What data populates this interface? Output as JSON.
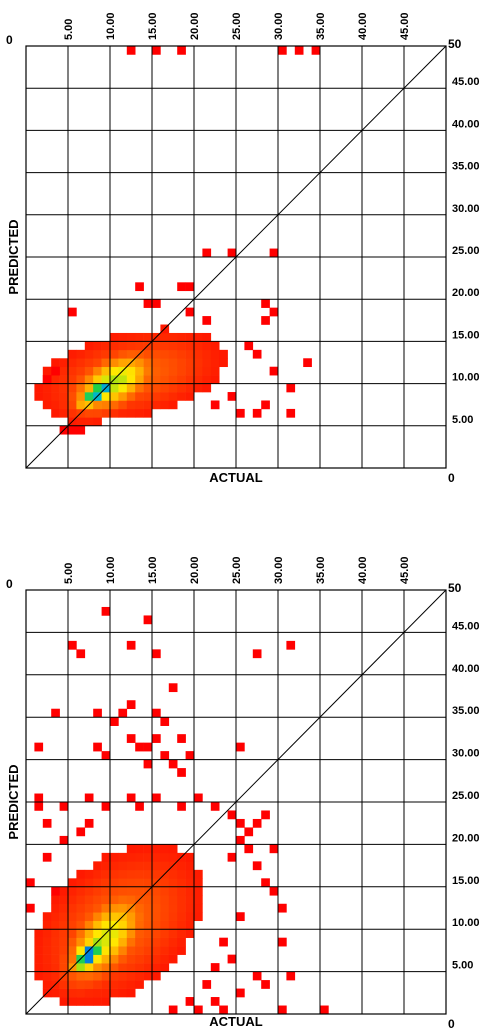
{
  "chart_data": [
    {
      "type": "heatmap",
      "title": "",
      "xlabel": "ACTUAL",
      "ylabel": "PREDICTED",
      "xlim": [
        0,
        50
      ],
      "ylim": [
        0,
        50
      ],
      "cell_size": 1,
      "grid": true,
      "diagonal_reference_line": true,
      "x_ticks": [
        "5.00",
        "10.00",
        "15.00",
        "20.00",
        "25.00",
        "30.00",
        "35.00",
        "40.00",
        "45.00"
      ],
      "y_ticks": [
        "5.00",
        "10.00",
        "15.00",
        "20.00",
        "25.00",
        "30.00",
        "35.00",
        "40.00",
        "45.00"
      ],
      "corner_labels": {
        "top_left": "0",
        "top_right": "50",
        "bottom_right": "0"
      },
      "colors": {
        "low": "#ff0000",
        "mid_low": "#ff8800",
        "mid": "#ffff00",
        "mid_high": "#22dd22",
        "high": "#0000ff"
      },
      "clusters": [
        {
          "cx": 8.7,
          "cy": 9.0,
          "sx": 1.6,
          "sy": 1.1,
          "rho": 0.72,
          "peak": 1.0
        },
        {
          "cx": 10.5,
          "cy": 10.2,
          "sx": 3.2,
          "sy": 2.3,
          "rho": 0.5,
          "peak": 0.55
        },
        {
          "cx": 12.5,
          "cy": 11.0,
          "sx": 6.5,
          "sy": 3.2,
          "rho": 0.35,
          "peak": 0.22
        }
      ],
      "density_threshold": 0.05,
      "outliers": [
        [
          12,
          50
        ],
        [
          15,
          50
        ],
        [
          18,
          50
        ],
        [
          30,
          50
        ],
        [
          32,
          50
        ],
        [
          34,
          50
        ],
        [
          21,
          25.6
        ],
        [
          24,
          25.6
        ],
        [
          29,
          25.6
        ],
        [
          13,
          21.6
        ],
        [
          18,
          21.6
        ],
        [
          19,
          21.6
        ],
        [
          5,
          18.6
        ],
        [
          14,
          19.6
        ],
        [
          15,
          19.6
        ],
        [
          28,
          19.6
        ],
        [
          29,
          18.6
        ],
        [
          28,
          17.6
        ],
        [
          19,
          18.6
        ],
        [
          21,
          17.6
        ],
        [
          26,
          14.6
        ],
        [
          33,
          12.6
        ],
        [
          31,
          9.6
        ],
        [
          31,
          6.6
        ],
        [
          24,
          8.6
        ],
        [
          22,
          7.6
        ],
        [
          25,
          6.6
        ],
        [
          27,
          6.6
        ],
        [
          28,
          7.6
        ],
        [
          6,
          4.6
        ],
        [
          4,
          4.6
        ],
        [
          5,
          4.6
        ],
        [
          29,
          11.6
        ],
        [
          27,
          13.6
        ],
        [
          2,
          10.6
        ],
        [
          3,
          11.6
        ]
      ],
      "vmax": 1.0
    },
    {
      "type": "heatmap",
      "title": "",
      "xlabel": "ACTUAL",
      "ylabel": "PREDICTED",
      "xlim": [
        0,
        50
      ],
      "ylim": [
        0,
        50
      ],
      "cell_size": 1,
      "grid": true,
      "diagonal_reference_line": true,
      "x_ticks": [
        "5.00",
        "10.00",
        "15.00",
        "20.00",
        "25.00",
        "30.00",
        "35.00",
        "40.00",
        "45.00"
      ],
      "y_ticks": [
        "5.00",
        "10.00",
        "15.00",
        "20.00",
        "25.00",
        "30.00",
        "35.00",
        "40.00",
        "45.00"
      ],
      "corner_labels": {
        "top_left": "0",
        "top_right": "50",
        "bottom_right": "0"
      },
      "colors": {
        "low": "#ff0000",
        "mid_low": "#ff8800",
        "mid": "#ffff00",
        "mid_high": "#22dd22",
        "high": "#0000ff"
      },
      "clusters": [
        {
          "cx": 7.5,
          "cy": 7.0,
          "sx": 1.3,
          "sy": 1.4,
          "rho": 0.6,
          "peak": 1.0
        },
        {
          "cx": 9.5,
          "cy": 9.0,
          "sx": 3.2,
          "sy": 3.5,
          "rho": 0.55,
          "peak": 0.5
        },
        {
          "cx": 11.0,
          "cy": 10.5,
          "sx": 6.0,
          "sy": 5.5,
          "rho": 0.4,
          "peak": 0.22
        }
      ],
      "density_threshold": 0.05,
      "outliers": [
        [
          9,
          47.6
        ],
        [
          14,
          46.6
        ],
        [
          5,
          43.6
        ],
        [
          6,
          42.6
        ],
        [
          12,
          43.6
        ],
        [
          15,
          42.6
        ],
        [
          31,
          43.6
        ],
        [
          27,
          42.6
        ],
        [
          17,
          38.6
        ],
        [
          12,
          36.6
        ],
        [
          3,
          35.6
        ],
        [
          8,
          35.6
        ],
        [
          11,
          35.6
        ],
        [
          15,
          35.6
        ],
        [
          16,
          34.6
        ],
        [
          10,
          34.6
        ],
        [
          12,
          32.6
        ],
        [
          13,
          31.6
        ],
        [
          15,
          32.6
        ],
        [
          18,
          32.6
        ],
        [
          1,
          31.6
        ],
        [
          8,
          31.6
        ],
        [
          14,
          31.6
        ],
        [
          9,
          30.6
        ],
        [
          16,
          30.6
        ],
        [
          19,
          30.6
        ],
        [
          14,
          29.6
        ],
        [
          17,
          29.6
        ],
        [
          18,
          28.6
        ],
        [
          25,
          31.6
        ],
        [
          1,
          25.6
        ],
        [
          2,
          22.6
        ],
        [
          1,
          24.6
        ],
        [
          4,
          24.6
        ],
        [
          7,
          25.6
        ],
        [
          9,
          24.6
        ],
        [
          12,
          25.6
        ],
        [
          13,
          24.6
        ],
        [
          15,
          25.6
        ],
        [
          18,
          24.6
        ],
        [
          20,
          25.6
        ],
        [
          22,
          24.6
        ],
        [
          24,
          23.6
        ],
        [
          25,
          22.6
        ],
        [
          26,
          21.6
        ],
        [
          27,
          22.6
        ],
        [
          28,
          23.6
        ],
        [
          25,
          20.6
        ],
        [
          26,
          19.6
        ],
        [
          29,
          19.6
        ],
        [
          24,
          18.6
        ],
        [
          27,
          17.6
        ],
        [
          28,
          15.6
        ],
        [
          29,
          14.6
        ],
        [
          30,
          12.6
        ],
        [
          30,
          8.6
        ],
        [
          31,
          4.6
        ],
        [
          27,
          4.6
        ],
        [
          28,
          3.6
        ],
        [
          35,
          0.6
        ],
        [
          30,
          0.6
        ],
        [
          23,
          0.6
        ],
        [
          25,
          2.6
        ],
        [
          22,
          1.6
        ],
        [
          20,
          0.6
        ],
        [
          19,
          1.6
        ],
        [
          17,
          0.6
        ],
        [
          21,
          3.6
        ],
        [
          22,
          5.6
        ],
        [
          24,
          6.6
        ],
        [
          23,
          8.6
        ],
        [
          25,
          11.6
        ],
        [
          2,
          18.6
        ],
        [
          0,
          15.6
        ],
        [
          3,
          14.6
        ],
        [
          0,
          12.6
        ],
        [
          4,
          20.6
        ],
        [
          6,
          21.6
        ],
        [
          7,
          22.6
        ]
      ],
      "vmax": 1.0
    }
  ]
}
